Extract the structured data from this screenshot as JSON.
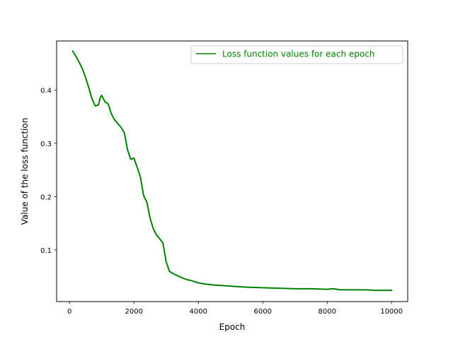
{
  "chart_data": {
    "type": "line",
    "xlabel": "Epoch",
    "ylabel": "Value of the loss function",
    "xlim": [
      -400,
      10500
    ],
    "ylim": [
      0.003,
      0.492
    ],
    "x_ticks": [
      0,
      2000,
      4000,
      6000,
      8000,
      10000
    ],
    "y_ticks": [
      0.1,
      0.2,
      0.3,
      0.4
    ],
    "x_tick_labels": [
      "0",
      "2000",
      "4000",
      "6000",
      "8000",
      "10000"
    ],
    "y_tick_labels": [
      "0.1",
      "0.2",
      "0.3",
      "0.4"
    ],
    "grid": false,
    "legend_position": "upper right",
    "series": [
      {
        "name": "Loss function values for each epoch",
        "color": "#008000",
        "x": [
          100,
          200,
          300,
          400,
          500,
          600,
          700,
          800,
          900,
          950,
          1000,
          1100,
          1200,
          1300,
          1400,
          1500,
          1600,
          1700,
          1750,
          1800,
          1900,
          2000,
          2100,
          2200,
          2300,
          2400,
          2500,
          2600,
          2700,
          2800,
          2900,
          3000,
          3100,
          3200,
          3400,
          3600,
          3800,
          4000,
          4200,
          4500,
          5000,
          5500,
          6000,
          6500,
          7000,
          7500,
          8000,
          8200,
          8400,
          8700,
          9000,
          9200,
          9500,
          9800,
          10000
        ],
        "y": [
          0.473,
          0.463,
          0.452,
          0.44,
          0.423,
          0.404,
          0.383,
          0.37,
          0.372,
          0.385,
          0.39,
          0.378,
          0.374,
          0.355,
          0.344,
          0.337,
          0.33,
          0.32,
          0.305,
          0.288,
          0.27,
          0.272,
          0.255,
          0.237,
          0.202,
          0.19,
          0.16,
          0.14,
          0.128,
          0.121,
          0.113,
          0.078,
          0.06,
          0.056,
          0.05,
          0.045,
          0.042,
          0.038,
          0.036,
          0.034,
          0.032,
          0.03,
          0.029,
          0.028,
          0.027,
          0.027,
          0.026,
          0.027,
          0.025,
          0.025,
          0.025,
          0.025,
          0.024,
          0.024,
          0.024
        ]
      }
    ]
  }
}
